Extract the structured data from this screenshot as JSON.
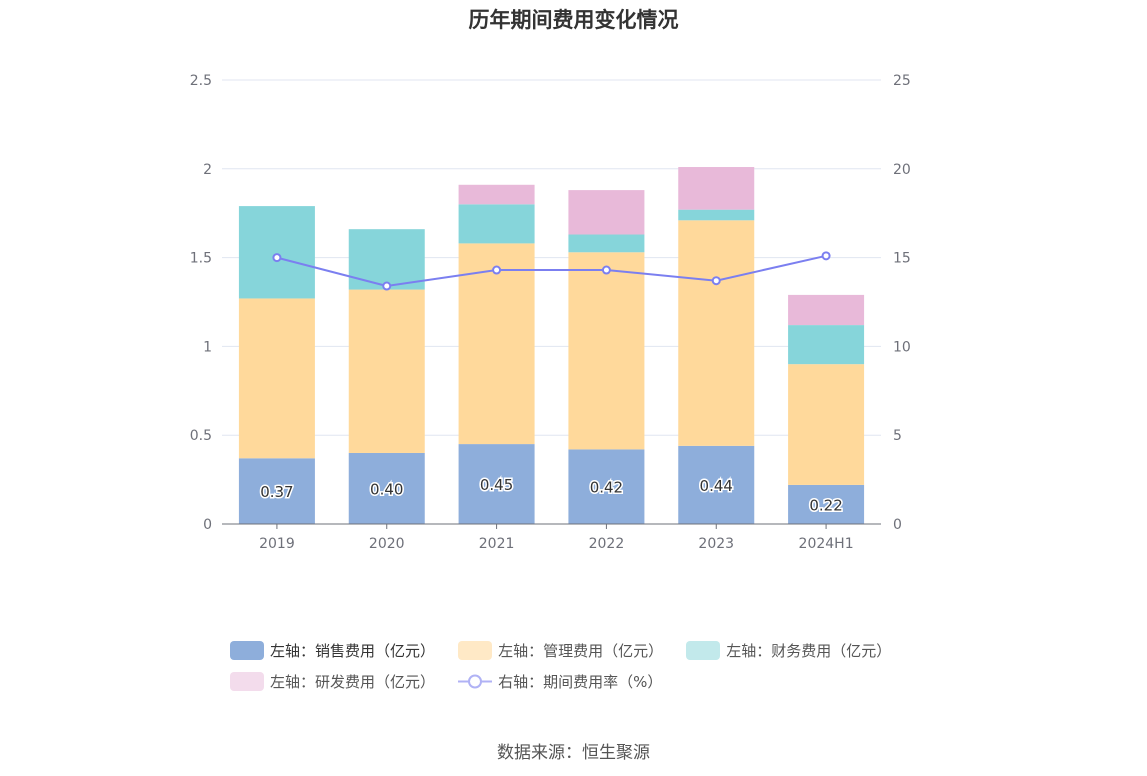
{
  "title": "历年期间费用变化情况",
  "source": "数据来源：恒生聚源",
  "chart_data": {
    "type": "bar",
    "stacked": true,
    "categories": [
      "2019",
      "2020",
      "2021",
      "2022",
      "2023",
      "2024H1"
    ],
    "left_axis": {
      "ylim": [
        0,
        2.5
      ],
      "ticks": [
        "0",
        "0.5",
        "1",
        "1.5",
        "2",
        "2.5"
      ]
    },
    "right_axis": {
      "ylim": [
        0,
        25
      ],
      "ticks": [
        "0",
        "5",
        "10",
        "15",
        "20",
        "25"
      ]
    },
    "grid": true,
    "legend_position": "bottom",
    "series": [
      {
        "name": "左轴：销售费用（亿元）",
        "type": "bar",
        "axis": "left",
        "color": "#8eaedb",
        "values": [
          0.37,
          0.4,
          0.45,
          0.42,
          0.44,
          0.22
        ],
        "labels": [
          "0.37",
          "0.40",
          "0.45",
          "0.42",
          "0.44",
          "0.22"
        ]
      },
      {
        "name": "左轴：管理费用（亿元）",
        "type": "bar",
        "axis": "left",
        "color": "#ffd99b",
        "values": [
          0.9,
          0.92,
          1.13,
          1.11,
          1.27,
          0.68
        ]
      },
      {
        "name": "左轴：财务费用（亿元）",
        "type": "bar",
        "axis": "left",
        "color": "#86d5da",
        "values": [
          0.52,
          0.34,
          0.22,
          0.1,
          0.06,
          0.22
        ]
      },
      {
        "name": "左轴：研发费用（亿元）",
        "type": "bar",
        "axis": "left",
        "color": "#e8b9d9",
        "values": [
          0,
          0,
          0.11,
          0.25,
          0.24,
          0.17
        ]
      },
      {
        "name": "右轴：期间费用率（%）",
        "type": "line",
        "axis": "right",
        "color": "#7b7ff0",
        "values": [
          15.0,
          13.4,
          14.3,
          14.3,
          13.7,
          15.1
        ]
      }
    ]
  },
  "legend_colors": {
    "sales": "#8eaedb",
    "admin": "#ffe9c6",
    "finance": "#c2e9eb",
    "rd": "#f3dcec",
    "rate": "#7b7ff0"
  }
}
